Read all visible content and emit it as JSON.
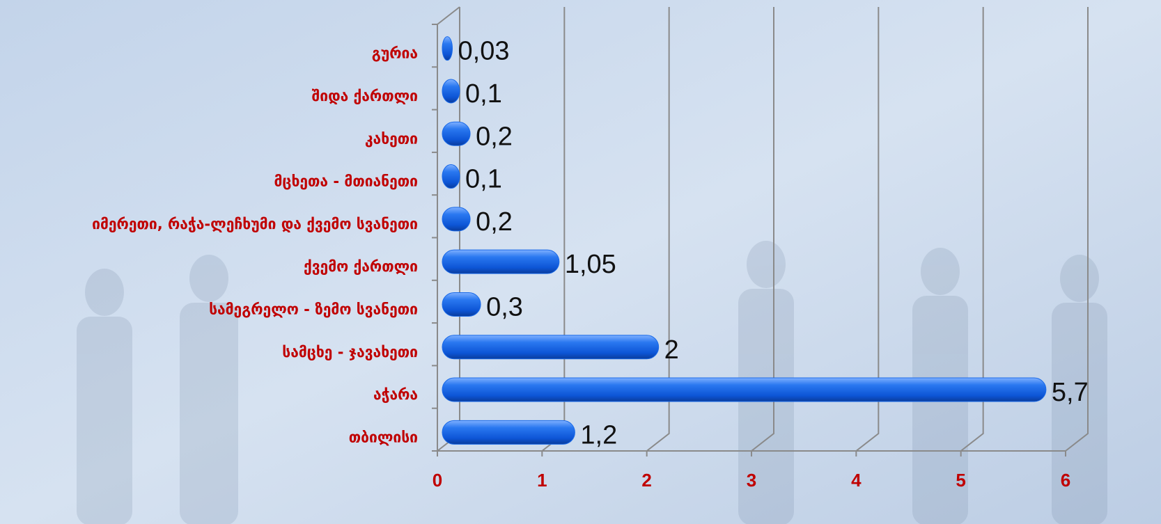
{
  "chart_data": {
    "type": "bar",
    "orientation": "horizontal",
    "categories": [
      "გურია",
      "შიდა ქართლი",
      "კახეთი",
      "მცხეთა - მთიანეთი",
      "იმერეთი, რაჭა-ლეჩხუმი და ქვემო სვანეთი",
      "ქვემო ქართლი",
      "სამეგრელო - ზემო სვანეთი",
      "სამცხე - ჯავახეთი",
      "აჭარა",
      "თბილისი"
    ],
    "values": [
      0.03,
      0.1,
      0.2,
      0.1,
      0.2,
      1.05,
      0.3,
      2,
      5.7,
      1.2
    ],
    "value_labels": [
      "0,03",
      "0,1",
      "0,2",
      "0,1",
      "0,2",
      "1,05",
      "0,3",
      "2",
      "5,7",
      "1,2"
    ],
    "color": "#1a6ae8",
    "xlim": [
      0,
      6
    ],
    "xticks": [
      0,
      1,
      2,
      3,
      4,
      5,
      6
    ],
    "grid": true
  }
}
